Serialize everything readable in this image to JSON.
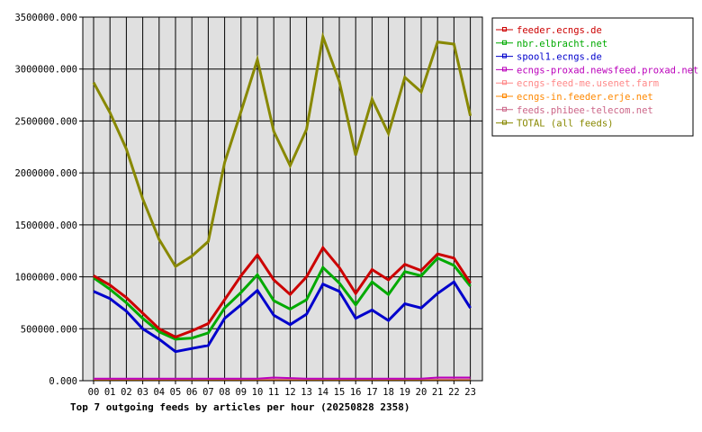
{
  "chart_data": {
    "type": "line",
    "title": "Top 7 outgoing feeds by articles per hour (20250828 2358)",
    "xlabel": "",
    "ylabel": "",
    "x": [
      "00",
      "01",
      "02",
      "03",
      "04",
      "05",
      "06",
      "07",
      "08",
      "09",
      "10",
      "11",
      "12",
      "13",
      "14",
      "15",
      "16",
      "17",
      "18",
      "19",
      "20",
      "21",
      "22",
      "23"
    ],
    "y_ticks": [
      "0.000",
      "500000.000",
      "1000000.000",
      "1500000.000",
      "2000000.000",
      "2500000.000",
      "3000000.000",
      "3500000.000"
    ],
    "ylim": [
      0,
      3500000
    ],
    "grid": true,
    "legend_position": "top-right",
    "series": [
      {
        "name": "feeder.ecngs.de",
        "color": "#cc0000",
        "width": 3,
        "values": [
          1010000,
          920000,
          800000,
          650000,
          500000,
          420000,
          480000,
          550000,
          780000,
          1010000,
          1210000,
          970000,
          830000,
          1000000,
          1280000,
          1090000,
          840000,
          1070000,
          970000,
          1120000,
          1060000,
          1220000,
          1180000,
          940000
        ]
      },
      {
        "name": "nbr.elbracht.net",
        "color": "#00aa00",
        "width": 3,
        "values": [
          990000,
          880000,
          750000,
          600000,
          470000,
          400000,
          410000,
          460000,
          700000,
          850000,
          1020000,
          770000,
          690000,
          780000,
          1090000,
          940000,
          730000,
          950000,
          830000,
          1050000,
          1010000,
          1180000,
          1110000,
          910000
        ]
      },
      {
        "name": "spool1.ecngs.de",
        "color": "#0000cc",
        "width": 3,
        "values": [
          860000,
          790000,
          670000,
          500000,
          400000,
          280000,
          310000,
          340000,
          600000,
          730000,
          870000,
          630000,
          540000,
          640000,
          930000,
          860000,
          600000,
          680000,
          580000,
          740000,
          700000,
          840000,
          950000,
          700000
        ]
      },
      {
        "name": "ecngs-proxad.newsfeed.proxad.net",
        "color": "#bb00bb",
        "width": 2,
        "values": [
          20000,
          20000,
          20000,
          20000,
          20000,
          20000,
          20000,
          20000,
          20000,
          20000,
          20000,
          30000,
          25000,
          20000,
          20000,
          20000,
          20000,
          20000,
          20000,
          20000,
          20000,
          30000,
          30000,
          30000
        ]
      },
      {
        "name": "ecngs-feed-me.usenet.farm",
        "color": "#ff8888",
        "width": 1,
        "values": [
          10000,
          10000,
          10000,
          10000,
          10000,
          10000,
          10000,
          10000,
          10000,
          10000,
          10000,
          10000,
          10000,
          10000,
          10000,
          10000,
          10000,
          10000,
          10000,
          10000,
          10000,
          10000,
          10000,
          10000
        ]
      },
      {
        "name": "ecngs-in.feeder.erje.net",
        "color": "#ff8800",
        "width": 1,
        "values": [
          5000,
          5000,
          5000,
          5000,
          5000,
          5000,
          5000,
          5000,
          5000,
          5000,
          5000,
          5000,
          5000,
          5000,
          5000,
          5000,
          5000,
          5000,
          5000,
          5000,
          5000,
          5000,
          5000,
          5000
        ]
      },
      {
        "name": "feeds.phibee-telecom.net",
        "color": "#cc6688",
        "width": 1,
        "values": [
          15000,
          15000,
          15000,
          15000,
          15000,
          15000,
          15000,
          15000,
          15000,
          15000,
          15000,
          15000,
          15000,
          15000,
          15000,
          15000,
          15000,
          15000,
          15000,
          15000,
          15000,
          15000,
          15000,
          15000
        ]
      },
      {
        "name": "TOTAL (all feeds)",
        "color": "#888800",
        "width": 3,
        "values": [
          2870000,
          2580000,
          2230000,
          1750000,
          1360000,
          1100000,
          1200000,
          1340000,
          2100000,
          2590000,
          3090000,
          2400000,
          2070000,
          2420000,
          3310000,
          2880000,
          2170000,
          2710000,
          2380000,
          2920000,
          2780000,
          3260000,
          3240000,
          2550000
        ]
      }
    ]
  }
}
